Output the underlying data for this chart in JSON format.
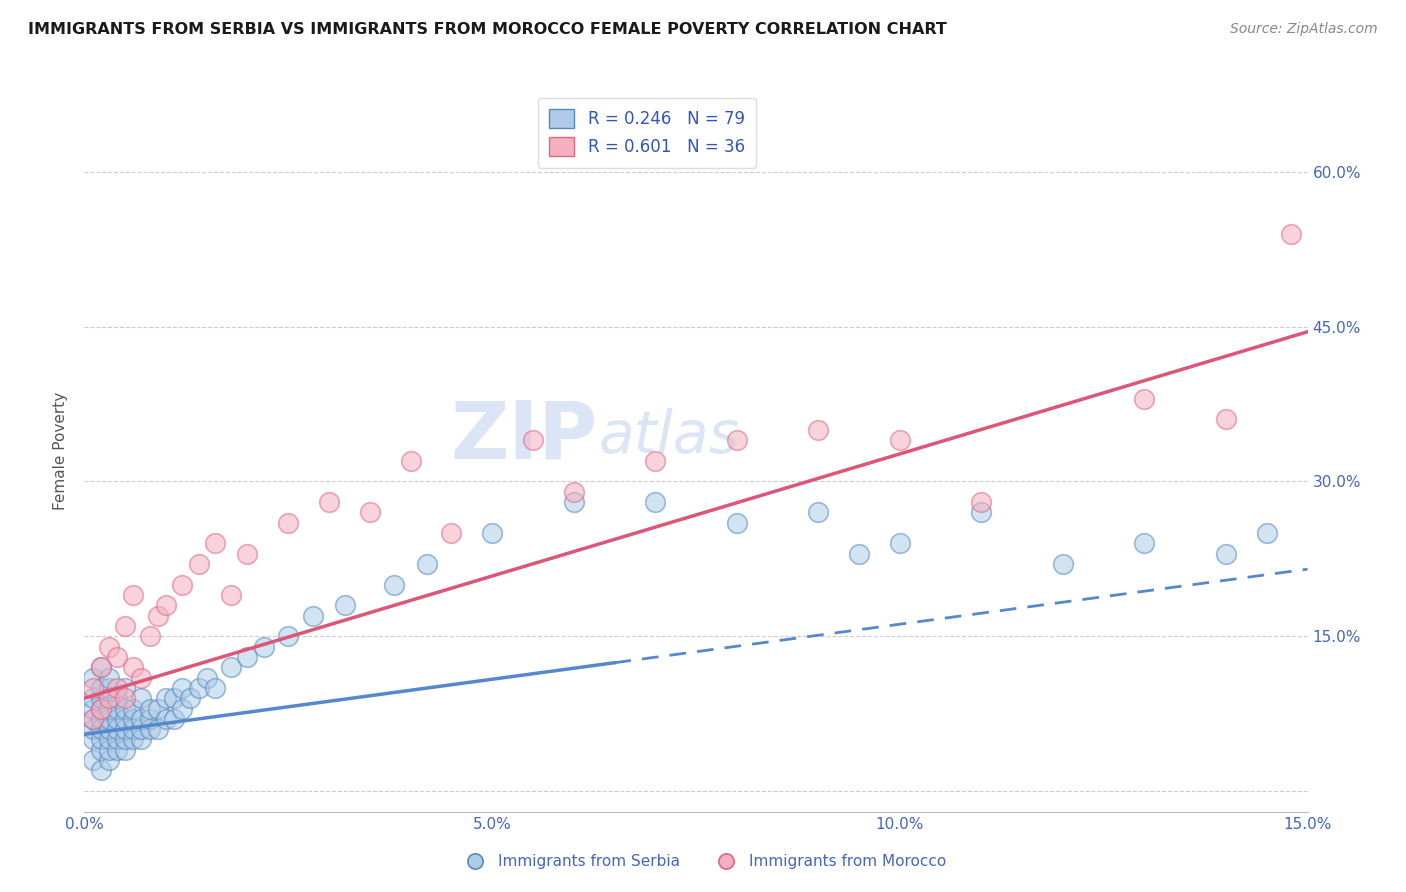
{
  "title": "IMMIGRANTS FROM SERBIA VS IMMIGRANTS FROM MOROCCO FEMALE POVERTY CORRELATION CHART",
  "source": "Source: ZipAtlas.com",
  "ylabel": "Female Poverty",
  "xlim": [
    0.0,
    0.15
  ],
  "ylim": [
    -0.02,
    0.68
  ],
  "yticks": [
    0.0,
    0.15,
    0.3,
    0.45,
    0.6
  ],
  "ytick_labels": [
    "",
    "15.0%",
    "30.0%",
    "45.0%",
    "60.0%"
  ],
  "xticks": [
    0.0,
    0.05,
    0.1,
    0.15
  ],
  "xtick_labels": [
    "0.0%",
    "5.0%",
    "10.0%",
    "15.0%"
  ],
  "serbia_R": 0.246,
  "serbia_N": 79,
  "morocco_R": 0.601,
  "morocco_N": 36,
  "serbia_color": "#aecce8",
  "morocco_color": "#f4b0be",
  "serbia_edge_color": "#5588bb",
  "morocco_edge_color": "#dd6688",
  "serbia_line_color": "#5588cc",
  "morocco_line_color": "#dd5577",
  "legend_text_color": "#3355bb",
  "title_color": "#1a1a1a",
  "axis_color": "#4466bb",
  "watermark": "ZIPAtlas",
  "watermark_color": "#b8ccee",
  "grid_color": "#cccccc",
  "serbia_x": [
    0.001,
    0.001,
    0.001,
    0.001,
    0.001,
    0.001,
    0.001,
    0.002,
    0.002,
    0.002,
    0.002,
    0.002,
    0.002,
    0.002,
    0.002,
    0.002,
    0.003,
    0.003,
    0.003,
    0.003,
    0.003,
    0.003,
    0.003,
    0.003,
    0.004,
    0.004,
    0.004,
    0.004,
    0.004,
    0.004,
    0.005,
    0.005,
    0.005,
    0.005,
    0.005,
    0.005,
    0.006,
    0.006,
    0.006,
    0.006,
    0.007,
    0.007,
    0.007,
    0.007,
    0.008,
    0.008,
    0.008,
    0.009,
    0.009,
    0.01,
    0.01,
    0.011,
    0.011,
    0.012,
    0.012,
    0.013,
    0.014,
    0.015,
    0.016,
    0.018,
    0.02,
    0.022,
    0.025,
    0.028,
    0.032,
    0.038,
    0.042,
    0.05,
    0.06,
    0.07,
    0.08,
    0.09,
    0.095,
    0.1,
    0.11,
    0.12,
    0.13,
    0.14,
    0.145
  ],
  "serbia_y": [
    0.03,
    0.05,
    0.06,
    0.07,
    0.08,
    0.09,
    0.11,
    0.02,
    0.04,
    0.05,
    0.06,
    0.07,
    0.08,
    0.09,
    0.1,
    0.12,
    0.03,
    0.04,
    0.05,
    0.06,
    0.07,
    0.08,
    0.1,
    0.11,
    0.04,
    0.05,
    0.06,
    0.07,
    0.08,
    0.09,
    0.04,
    0.05,
    0.06,
    0.07,
    0.08,
    0.1,
    0.05,
    0.06,
    0.07,
    0.08,
    0.05,
    0.06,
    0.07,
    0.09,
    0.06,
    0.07,
    0.08,
    0.06,
    0.08,
    0.07,
    0.09,
    0.07,
    0.09,
    0.08,
    0.1,
    0.09,
    0.1,
    0.11,
    0.1,
    0.12,
    0.13,
    0.14,
    0.15,
    0.17,
    0.18,
    0.2,
    0.22,
    0.25,
    0.28,
    0.28,
    0.26,
    0.27,
    0.23,
    0.24,
    0.27,
    0.22,
    0.24,
    0.23,
    0.25
  ],
  "morocco_x": [
    0.001,
    0.001,
    0.002,
    0.002,
    0.003,
    0.003,
    0.004,
    0.004,
    0.005,
    0.005,
    0.006,
    0.006,
    0.007,
    0.008,
    0.009,
    0.01,
    0.012,
    0.014,
    0.016,
    0.018,
    0.02,
    0.025,
    0.03,
    0.035,
    0.04,
    0.045,
    0.055,
    0.06,
    0.07,
    0.08,
    0.09,
    0.1,
    0.11,
    0.13,
    0.14,
    0.148
  ],
  "morocco_y": [
    0.07,
    0.1,
    0.08,
    0.12,
    0.09,
    0.14,
    0.1,
    0.13,
    0.09,
    0.16,
    0.12,
    0.19,
    0.11,
    0.15,
    0.17,
    0.18,
    0.2,
    0.22,
    0.24,
    0.19,
    0.23,
    0.26,
    0.28,
    0.27,
    0.32,
    0.25,
    0.34,
    0.29,
    0.32,
    0.34,
    0.35,
    0.34,
    0.28,
    0.38,
    0.36,
    0.54
  ],
  "serbia_trend_x": [
    0.0,
    0.15
  ],
  "serbia_trend_y": [
    0.055,
    0.215
  ],
  "morocco_trend_x": [
    0.0,
    0.15
  ],
  "morocco_trend_y": [
    0.09,
    0.445
  ]
}
